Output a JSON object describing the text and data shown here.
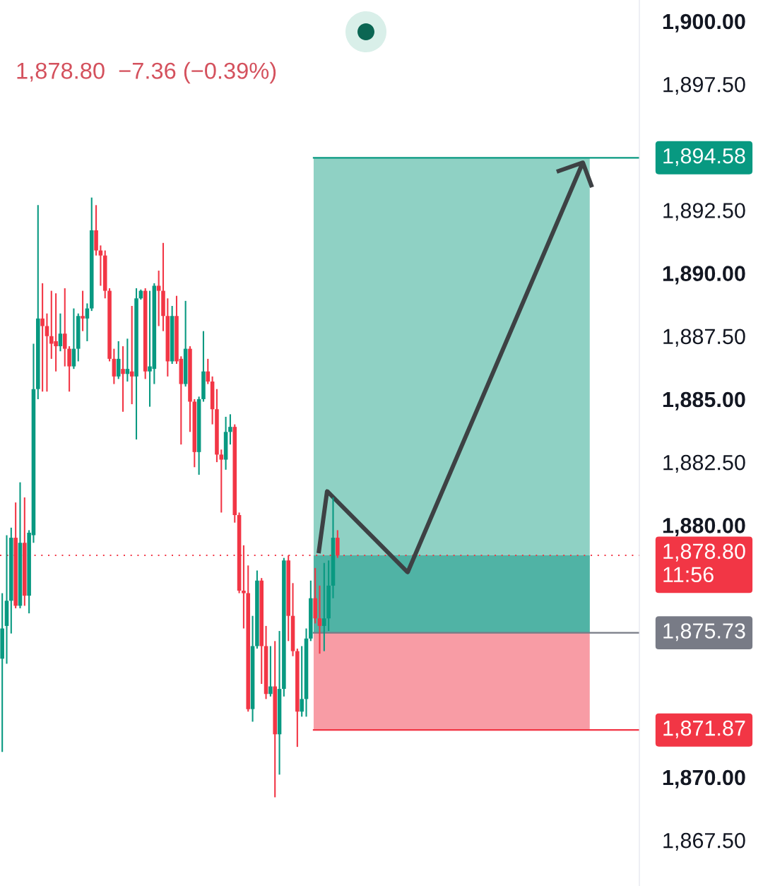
{
  "chart_data": {
    "type": "candlestick",
    "subtitle": "1,878.80  −7.36 (−0.39%)",
    "categories": [
      null,
      null,
      null,
      null,
      null,
      null,
      null,
      null,
      null,
      null,
      null,
      null,
      null,
      null,
      null,
      null,
      null,
      null,
      null,
      null,
      null,
      null,
      null,
      null,
      null,
      null,
      null,
      null,
      null,
      null,
      null,
      null,
      null,
      null,
      null,
      null,
      null,
      null,
      null,
      null,
      null,
      null,
      null,
      null,
      null,
      null,
      null,
      null,
      null,
      null,
      null,
      null,
      null,
      null,
      null,
      null,
      null,
      null,
      null,
      null,
      null,
      null,
      null,
      null,
      null,
      null,
      null,
      null,
      null,
      null,
      null,
      null,
      null,
      null,
      null,
      null,
      null,
      null,
      null,
      null,
      null,
      null,
      null,
      null,
      null,
      null,
      null,
      null,
      null,
      null,
      null,
      null,
      null,
      null,
      null,
      null,
      null,
      null,
      null,
      null,
      null,
      null,
      null,
      null,
      null,
      null,
      null,
      null,
      null,
      null,
      null,
      null,
      null,
      null,
      null,
      null,
      null,
      null,
      null,
      null,
      null,
      null,
      null,
      null,
      null,
      null,
      null,
      null,
      null,
      null,
      null,
      null,
      null,
      null,
      null,
      null,
      null,
      null,
      null,
      null,
      null,
      null,
      null
    ],
    "ohlc": [
      [
        1874.7,
        1877.3,
        1871.0,
        1875.9
      ],
      [
        1876.0,
        1879.6,
        1874.5,
        1877.0
      ],
      [
        1877.0,
        1879.9,
        1875.7,
        1879.5
      ],
      [
        1879.5,
        1880.9,
        1876.7,
        1876.8
      ],
      [
        1876.8,
        1881.7,
        1876.7,
        1879.3
      ],
      [
        1879.3,
        1881.1,
        1876.8,
        1877.2
      ],
      [
        1877.2,
        1879.8,
        1876.5,
        1879.7
      ],
      [
        1879.6,
        1887.2,
        1879.3,
        1885.4
      ],
      [
        1885.4,
        1892.7,
        1885.0,
        1888.2
      ],
      [
        1888.2,
        1889.6,
        1885.3,
        1887.9
      ],
      [
        1887.9,
        1888.4,
        1885.3,
        1887.5
      ],
      [
        1887.5,
        1889.3,
        1886.6,
        1887.2
      ],
      [
        1887.3,
        1889.2,
        1886.1,
        1887.1
      ],
      [
        1887.1,
        1888.4,
        1886.9,
        1887.6
      ],
      [
        1887.6,
        1889.4,
        1886.3,
        1887.0
      ],
      [
        1887.0,
        1887.1,
        1885.3,
        1886.3
      ],
      [
        1886.3,
        1888.6,
        1886.2,
        1887.0
      ],
      [
        1887.0,
        1888.4,
        1886.5,
        1888.3
      ],
      [
        1888.3,
        1889.3,
        1887.7,
        1888.2
      ],
      [
        1888.2,
        1888.8,
        1887.3,
        1888.6
      ],
      [
        1888.6,
        1893.0,
        1888.5,
        1891.7
      ],
      [
        1891.7,
        1892.7,
        1890.7,
        1890.9
      ],
      [
        1890.9,
        1891.1,
        1889.5,
        1890.7
      ],
      [
        1890.7,
        1890.9,
        1889.0,
        1889.3
      ],
      [
        1889.3,
        1889.4,
        1886.5,
        1886.6
      ],
      [
        1886.6,
        1887.0,
        1885.6,
        1885.9
      ],
      [
        1885.9,
        1887.3,
        1885.8,
        1886.6
      ],
      [
        1886.2,
        1887.1,
        1884.5,
        1886.0
      ],
      [
        1886.0,
        1887.4,
        1885.7,
        1886.2
      ],
      [
        1886.1,
        1888.7,
        1884.8,
        1885.9
      ],
      [
        1885.9,
        1889.4,
        1883.4,
        1889.0
      ],
      [
        1889.0,
        1889.35,
        1888.95,
        1889.3
      ],
      [
        1889.3,
        1889.4,
        1885.8,
        1886.1
      ],
      [
        1886.1,
        1889.3,
        1884.7,
        1886.3
      ],
      [
        1886.2,
        1889.6,
        1885.6,
        1889.5
      ],
      [
        1889.5,
        1890.1,
        1887.9,
        1889.3
      ],
      [
        1889.3,
        1891.2,
        1887.7,
        1888.3
      ],
      [
        1888.3,
        1889.0,
        1885.9,
        1886.5
      ],
      [
        1886.5,
        1888.7,
        1886.4,
        1888.3
      ],
      [
        1888.3,
        1889.1,
        1886.4,
        1886.5
      ],
      [
        1886.6,
        1886.7,
        1883.2,
        1885.6
      ],
      [
        1885.6,
        1888.9,
        1885.5,
        1887.0
      ],
      [
        1887.0,
        1887.1,
        1883.7,
        1884.9
      ],
      [
        1884.9,
        1885.0,
        1882.3,
        1882.9
      ],
      [
        1882.9,
        1885.1,
        1882.0,
        1885.0
      ],
      [
        1885.0,
        1887.7,
        1884.9,
        1886.1
      ],
      [
        1886.1,
        1886.6,
        1885.6,
        1885.7
      ],
      [
        1885.7,
        1885.9,
        1884.0,
        1884.6
      ],
      [
        1884.6,
        1885.4,
        1882.5,
        1882.8
      ],
      [
        1882.8,
        1883.0,
        1880.5,
        1882.6
      ],
      [
        1882.6,
        1884.3,
        1882.2,
        1883.7
      ],
      [
        1883.7,
        1884.4,
        1883.2,
        1883.9
      ],
      [
        1883.9,
        1884.0,
        1880.1,
        1880.4
      ],
      [
        1880.4,
        1880.5,
        1877.3,
        1877.4
      ],
      [
        1877.4,
        1879.2,
        1875.9,
        1877.3
      ],
      [
        1877.3,
        1878.4,
        1872.6,
        1872.7
      ],
      [
        1872.7,
        1876.4,
        1872.2,
        1875.2
      ],
      [
        1875.2,
        1878.2,
        1875.1,
        1877.8
      ],
      [
        1877.8,
        1877.9,
        1873.7,
        1875.2
      ],
      [
        1875.2,
        1876.0,
        1873.1,
        1873.3
      ],
      [
        1873.3,
        1875.2,
        1873.2,
        1873.6
      ],
      [
        1873.6,
        1875.4,
        1869.2,
        1871.7
      ],
      [
        1871.7,
        1875.8,
        1870.1,
        1873.5
      ],
      [
        1873.5,
        1878.7,
        1873.2,
        1878.6
      ],
      [
        1878.6,
        1878.8,
        1875.4,
        1876.4
      ],
      [
        1876.4,
        1877.7,
        1874.8,
        1875.0
      ],
      [
        1875.0,
        1875.1,
        1871.2,
        1872.6
      ],
      [
        1872.6,
        1875.2,
        1872.4,
        1873.1
      ],
      [
        1873.1,
        1875.9,
        1872.4,
        1875.5
      ],
      [
        1875.5,
        1877.8,
        1875.4,
        1877.1
      ],
      [
        1877.1,
        1878.3,
        1876.1,
        1876.3
      ],
      [
        1876.3,
        1877.6,
        1874.9,
        1876.0
      ],
      [
        1876.0,
        1878.5,
        1875.0,
        1876.3
      ],
      [
        1876.3,
        1878.6,
        1875.8,
        1877.6
      ],
      [
        1877.6,
        1881.1,
        1877.1,
        1879.5
      ],
      [
        1879.5,
        1879.8,
        1878.7,
        1878.8
      ],
      null,
      null,
      null,
      null,
      null,
      null,
      null,
      null,
      null,
      null,
      null,
      null,
      null,
      null,
      null,
      null,
      null,
      null,
      null,
      null,
      null,
      null,
      null,
      null,
      null,
      null,
      null,
      null,
      null,
      null,
      null,
      null,
      null,
      null,
      null,
      null,
      null,
      null,
      null,
      null,
      null,
      null,
      null,
      null,
      null,
      null,
      null,
      null,
      null,
      null,
      null,
      null,
      null,
      null,
      null,
      null,
      null,
      null,
      null,
      null,
      null,
      null,
      null,
      null,
      null,
      null,
      null
    ],
    "colors": [
      "#089981",
      "#089981",
      "#089981",
      "#f23645",
      "#089981",
      "#f23645",
      "#089981",
      "#089981",
      "#089981",
      "#f23645",
      "#f23645",
      "#f23645",
      "#f23645",
      "#089981",
      "#f23645",
      "#f23645",
      "#089981",
      "#089981",
      "#f23645",
      "#089981",
      "#089981",
      "#f23645",
      "#f23645",
      "#f23645",
      "#f23645",
      "#f23645",
      "#089981",
      "#f23645",
      "#089981",
      "#f23645",
      "#089981",
      "#089981",
      "#f23645",
      "#089981",
      "#089981",
      "#f23645",
      "#f23645",
      "#f23645",
      "#089981",
      "#f23645",
      "#f23645",
      "#089981",
      "#f23645",
      "#f23645",
      "#089981",
      "#089981",
      "#f23645",
      "#f23645",
      "#f23645",
      "#f23645",
      "#089981",
      "#089981",
      "#f23645",
      "#f23645",
      "#f23645",
      "#f23645",
      "#089981",
      "#089981",
      "#f23645",
      "#f23645",
      "#089981",
      "#f23645",
      "#089981",
      "#089981",
      "#f23645",
      "#f23645",
      "#f23645",
      "#089981",
      "#089981",
      "#089981",
      "#f23645",
      "#f23645",
      "#089981",
      "#089981",
      "#089981",
      "#f23645",
      null,
      null,
      null,
      null,
      null,
      null,
      null,
      null,
      null,
      null,
      null,
      null,
      null,
      null,
      null,
      null,
      null,
      null,
      null,
      null,
      null,
      null,
      null,
      null,
      null,
      null,
      null,
      null,
      null,
      null,
      null,
      null,
      null,
      null,
      null,
      null,
      null,
      null,
      null,
      null,
      null,
      null,
      null,
      null,
      null,
      null,
      null,
      null,
      null,
      null,
      null,
      null,
      null,
      null,
      null,
      null,
      null,
      null,
      null,
      null,
      null,
      null,
      null,
      null,
      null,
      null,
      null
    ],
    "ylim": [
      1865.68,
      1900.84
    ],
    "yticks": [
      {
        "value": 1867.5,
        "label": "1,867.50"
      },
      {
        "value": 1870,
        "label": "1,870.00"
      },
      {
        "value": 1880,
        "label": "1,880.00"
      },
      {
        "value": 1882.5,
        "label": "1,882.50"
      },
      {
        "value": 1885,
        "label": "1,885.00"
      },
      {
        "value": 1887.5,
        "label": "1,887.50"
      },
      {
        "value": 1890,
        "label": "1,890.00"
      },
      {
        "value": 1892.5,
        "label": "1,892.50"
      },
      {
        "value": 1897.5,
        "label": "1,897.50"
      },
      {
        "value": 1900,
        "label": "1,900.00"
      }
    ],
    "bands": [
      {
        "axis": "y",
        "from": 1875.73,
        "to": 1894.58,
        "color": "#8fd1c4"
      },
      {
        "axis": "y",
        "from": 1875.73,
        "to": 1878.8,
        "color": "#50b3a5"
      },
      {
        "axis": "y",
        "from": 1871.87,
        "to": 1875.73,
        "color": "#f89ca5"
      }
    ],
    "ref_lines": [
      {
        "axis": "y",
        "value": 1894.58,
        "label": "1,894.58",
        "color": "#089981",
        "line_style": "solid"
      },
      {
        "axis": "y",
        "value": 1878.8,
        "label": "1,878.80\n11:56",
        "color": "#f23645",
        "line_style": "dotted"
      },
      {
        "axis": "y",
        "value": 1875.73,
        "label": "1,875.73",
        "color": "#787b86",
        "line_style": "solid"
      },
      {
        "axis": "y",
        "value": 1871.87,
        "label": "1,871.87",
        "color": "#f23645",
        "line_style": "solid"
      }
    ],
    "tick_labels": "y"
  }
}
